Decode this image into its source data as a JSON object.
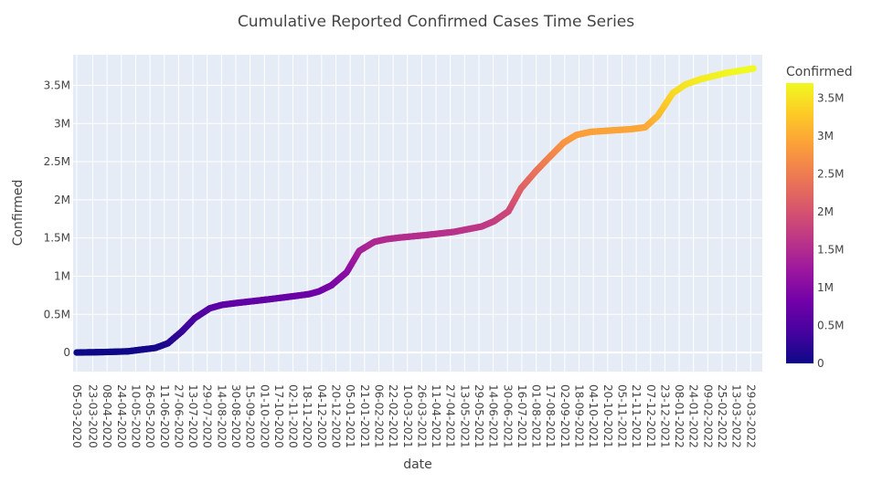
{
  "chart_data": {
    "type": "scatter",
    "title": "Cumulative Reported Confirmed Cases Time Series",
    "xlabel": "date",
    "ylabel": "Confirmed",
    "x_range": [
      "2020-03-01",
      "2022-04-11"
    ],
    "ylim": [
      -250000,
      3900000
    ],
    "y_ticks": [
      0,
      500000,
      1000000,
      1500000,
      2000000,
      2500000,
      3000000,
      3500000
    ],
    "y_tick_labels": [
      "0",
      "0.5M",
      "1M",
      "1.5M",
      "2M",
      "2.5M",
      "3M",
      "3.5M"
    ],
    "x_tick_labels": [
      "05-03-2020",
      "23-03-2020",
      "08-04-2020",
      "24-04-2020",
      "10-05-2020",
      "26-05-2020",
      "11-06-2020",
      "27-06-2020",
      "13-07-2020",
      "29-07-2020",
      "14-08-2020",
      "30-08-2020",
      "15-09-2020",
      "01-10-2020",
      "17-10-2020",
      "02-11-2020",
      "18-11-2020",
      "04-12-2020",
      "20-12-2020",
      "05-01-2021",
      "21-01-2021",
      "06-02-2021",
      "22-02-2021",
      "10-03-2021",
      "26-03-2021",
      "11-04-2021",
      "27-04-2021",
      "13-05-2021",
      "29-05-2021",
      "14-06-2021",
      "30-06-2021",
      "16-07-2021",
      "01-08-2021",
      "17-08-2021",
      "02-09-2021",
      "18-09-2021",
      "04-10-2021",
      "20-10-2021",
      "05-11-2021",
      "21-11-2021",
      "07-12-2021",
      "23-12-2021",
      "08-01-2022",
      "24-01-2022",
      "09-02-2022",
      "25-02-2022",
      "13-03-2022",
      "29-03-2022"
    ],
    "grid": true,
    "colorbar": {
      "title": "Confirmed",
      "range": [
        0,
        3700000
      ],
      "tick_values": [
        0,
        500000,
        1000000,
        1500000,
        2000000,
        2500000,
        3000000,
        3500000
      ],
      "tick_labels": [
        "0",
        "0.5M",
        "1M",
        "1.5M",
        "2M",
        "2.5M",
        "3M",
        "3.5M"
      ],
      "colorscale": [
        "#0d0887",
        "#46039f",
        "#7201a8",
        "#9c179e",
        "#bd3786",
        "#d8576b",
        "#ed7953",
        "#fb9f3a",
        "#fdca26",
        "#f0f921"
      ]
    },
    "series": [
      {
        "x": [
          "2020-03-05",
          "2020-04-01",
          "2020-05-01",
          "2020-06-01",
          "2020-06-15",
          "2020-07-01",
          "2020-07-15",
          "2020-08-01",
          "2020-08-15",
          "2020-09-01",
          "2020-10-01",
          "2020-11-01",
          "2020-11-20",
          "2020-12-01",
          "2020-12-15",
          "2021-01-01",
          "2021-01-15",
          "2021-02-01",
          "2021-02-15",
          "2021-03-01",
          "2021-04-01",
          "2021-05-01",
          "2021-06-01",
          "2021-06-15",
          "2021-07-01",
          "2021-07-15",
          "2021-08-01",
          "2021-08-15",
          "2021-09-01",
          "2021-09-15",
          "2021-10-01",
          "2021-11-01",
          "2021-11-15",
          "2021-12-01",
          "2021-12-15",
          "2022-01-01",
          "2022-01-15",
          "2022-02-01",
          "2022-03-01",
          "2022-04-01"
        ],
        "values": [
          0,
          5000,
          15000,
          60000,
          120000,
          280000,
          450000,
          580000,
          625000,
          650000,
          690000,
          735000,
          765000,
          800000,
          880000,
          1050000,
          1330000,
          1450000,
          1485000,
          1505000,
          1540000,
          1580000,
          1650000,
          1720000,
          1850000,
          2150000,
          2380000,
          2550000,
          2750000,
          2850000,
          2890000,
          2915000,
          2925000,
          2950000,
          3100000,
          3400000,
          3510000,
          3580000,
          3660000,
          3720000
        ]
      }
    ]
  }
}
